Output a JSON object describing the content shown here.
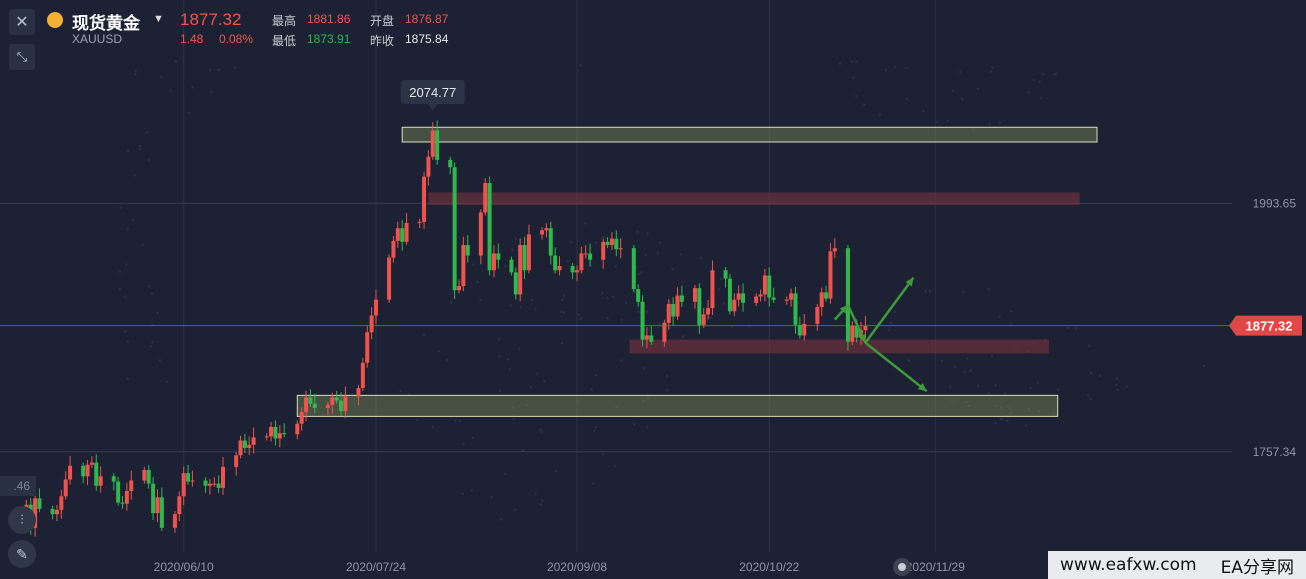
{
  "symbol": {
    "name": "现货黄金",
    "code": "XAUUSD",
    "price": "1877.32",
    "change": "1.48",
    "change_pct": "0.08%"
  },
  "quote": {
    "high_label": "最高",
    "high": "1881.86",
    "open_label": "开盘",
    "open": "1876.87",
    "low_label": "最低",
    "low": "1873.91",
    "prev_label": "昨收",
    "prev": "1875.84"
  },
  "side_left": {
    "partial_label": ".46"
  },
  "footer": {
    "site": "www.eafxw.com",
    "brand": "EA分享网"
  },
  "colors": {
    "bg": "#1c2233",
    "up": "#f0534d",
    "down": "#2fb84d",
    "zone_green": "#7a8a4a",
    "zone_red": "#8a3d44"
  },
  "chart_data": {
    "type": "candlestick",
    "price_axis": {
      "ticks": [
        1993.65,
        1757.34
      ],
      "current": 1877.32,
      "ylim": [
        1662,
        2130
      ]
    },
    "x_labels": [
      "2020/06/10",
      "2020/07/24",
      "2020/09/08",
      "2020/10/22",
      "2020/11/29"
    ],
    "peak_label": "2074.77",
    "zones": [
      {
        "kind": "resistance",
        "from": "2020-07-30",
        "to": "2021-01-05",
        "low": 2052,
        "high": 2066
      },
      {
        "kind": "resistance-red",
        "from": "2020-08-05",
        "to": "2021-01-01",
        "low": 1992,
        "high": 2004
      },
      {
        "kind": "support-red",
        "from": "2020-09-20",
        "to": "2020-12-25",
        "low": 1851,
        "high": 1864
      },
      {
        "kind": "support",
        "from": "2020-07-06",
        "to": "2020-12-27",
        "low": 1791,
        "high": 1811
      }
    ],
    "arrows": [
      {
        "from": [
          "2020-11-06",
          1883
        ],
        "to": [
          "2020-11-09",
          1897
        ]
      },
      {
        "from": [
          "2020-11-09",
          1897
        ],
        "to": [
          "2020-11-13",
          1861
        ]
      },
      {
        "from": [
          "2020-11-13",
          1861
        ],
        "to": [
          "2020-11-24",
          1923
        ]
      },
      {
        "from": [
          "2020-11-13",
          1861
        ],
        "to": [
          "2020-11-27",
          1815
        ]
      }
    ],
    "candles": [
      {
        "d": "2020-05-04",
        "c": 1702
      },
      {
        "d": "2020-05-05",
        "c": 1707
      },
      {
        "d": "2020-05-06",
        "c": 1685
      },
      {
        "d": "2020-05-07",
        "c": 1713
      },
      {
        "d": "2020-05-08",
        "c": 1703
      },
      {
        "d": "2020-05-11",
        "c": 1698
      },
      {
        "d": "2020-05-12",
        "c": 1702
      },
      {
        "d": "2020-05-13",
        "c": 1715
      },
      {
        "d": "2020-05-14",
        "c": 1731
      },
      {
        "d": "2020-05-15",
        "c": 1744
      },
      {
        "d": "2020-05-18",
        "c": 1734
      },
      {
        "d": "2020-05-19",
        "c": 1745
      },
      {
        "d": "2020-05-20",
        "c": 1747
      },
      {
        "d": "2020-05-21",
        "c": 1725
      },
      {
        "d": "2020-05-22",
        "c": 1734
      },
      {
        "d": "2020-05-25",
        "c": 1729
      },
      {
        "d": "2020-05-26",
        "c": 1709
      },
      {
        "d": "2020-05-27",
        "c": 1708
      },
      {
        "d": "2020-05-28",
        "c": 1720
      },
      {
        "d": "2020-05-29",
        "c": 1730
      },
      {
        "d": "2020-06-01",
        "c": 1740
      },
      {
        "d": "2020-06-02",
        "c": 1727
      },
      {
        "d": "2020-06-03",
        "c": 1699
      },
      {
        "d": "2020-06-04",
        "c": 1714
      },
      {
        "d": "2020-06-05",
        "c": 1685
      },
      {
        "d": "2020-06-08",
        "c": 1698
      },
      {
        "d": "2020-06-09",
        "c": 1715
      },
      {
        "d": "2020-06-10",
        "c": 1737
      },
      {
        "d": "2020-06-11",
        "c": 1729
      },
      {
        "d": "2020-06-12",
        "c": 1730
      },
      {
        "d": "2020-06-15",
        "c": 1725
      },
      {
        "d": "2020-06-16",
        "c": 1727
      },
      {
        "d": "2020-06-17",
        "c": 1727
      },
      {
        "d": "2020-06-18",
        "c": 1723
      },
      {
        "d": "2020-06-19",
        "c": 1743
      },
      {
        "d": "2020-06-22",
        "c": 1754
      },
      {
        "d": "2020-06-23",
        "c": 1768
      },
      {
        "d": "2020-06-24",
        "c": 1761
      },
      {
        "d": "2020-06-25",
        "c": 1764
      },
      {
        "d": "2020-06-26",
        "c": 1771
      },
      {
        "d": "2020-06-29",
        "c": 1772
      },
      {
        "d": "2020-06-30",
        "c": 1781
      },
      {
        "d": "2020-07-01",
        "c": 1770
      },
      {
        "d": "2020-07-02",
        "c": 1775
      },
      {
        "d": "2020-07-03",
        "c": 1774
      },
      {
        "d": "2020-07-06",
        "c": 1784
      },
      {
        "d": "2020-07-07",
        "c": 1795
      },
      {
        "d": "2020-07-08",
        "c": 1809
      },
      {
        "d": "2020-07-09",
        "c": 1803
      },
      {
        "d": "2020-07-10",
        "c": 1799
      },
      {
        "d": "2020-07-13",
        "c": 1802
      },
      {
        "d": "2020-07-14",
        "c": 1809
      },
      {
        "d": "2020-07-15",
        "c": 1806
      },
      {
        "d": "2020-07-16",
        "c": 1796
      },
      {
        "d": "2020-07-17",
        "c": 1810
      },
      {
        "d": "2020-07-20",
        "c": 1818
      },
      {
        "d": "2020-07-21",
        "c": 1842
      },
      {
        "d": "2020-07-22",
        "c": 1871
      },
      {
        "d": "2020-07-23",
        "c": 1887
      },
      {
        "d": "2020-07-24",
        "c": 1902
      },
      {
        "d": "2020-07-27",
        "c": 1942
      },
      {
        "d": "2020-07-28",
        "c": 1958
      },
      {
        "d": "2020-07-29",
        "c": 1970
      },
      {
        "d": "2020-07-30",
        "c": 1957
      },
      {
        "d": "2020-07-31",
        "c": 1975
      },
      {
        "d": "2020-08-03",
        "c": 1976
      },
      {
        "d": "2020-08-04",
        "c": 2019
      },
      {
        "d": "2020-08-05",
        "c": 2038
      },
      {
        "d": "2020-08-06",
        "c": 2063
      },
      {
        "d": "2020-08-07",
        "c": 2035
      },
      {
        "d": "2020-08-10",
        "c": 2028
      },
      {
        "d": "2020-08-11",
        "c": 1911
      },
      {
        "d": "2020-08-12",
        "c": 1915
      },
      {
        "d": "2020-08-13",
        "c": 1954
      },
      {
        "d": "2020-08-14",
        "c": 1944
      },
      {
        "d": "2020-08-17",
        "c": 1985
      },
      {
        "d": "2020-08-18",
        "c": 2013
      },
      {
        "d": "2020-08-19",
        "c": 1930
      },
      {
        "d": "2020-08-20",
        "c": 1946
      },
      {
        "d": "2020-08-21",
        "c": 1940
      },
      {
        "d": "2020-08-24",
        "c": 1928
      },
      {
        "d": "2020-08-25",
        "c": 1907
      },
      {
        "d": "2020-08-26",
        "c": 1954
      },
      {
        "d": "2020-08-27",
        "c": 1930
      },
      {
        "d": "2020-08-28",
        "c": 1964
      },
      {
        "d": "2020-08-31",
        "c": 1968
      },
      {
        "d": "2020-09-01",
        "c": 1970
      },
      {
        "d": "2020-09-02",
        "c": 1944
      },
      {
        "d": "2020-09-03",
        "c": 1930
      },
      {
        "d": "2020-09-04",
        "c": 1934
      },
      {
        "d": "2020-09-07",
        "c": 1928
      },
      {
        "d": "2020-09-08",
        "c": 1930
      },
      {
        "d": "2020-09-09",
        "c": 1946
      },
      {
        "d": "2020-09-10",
        "c": 1946
      },
      {
        "d": "2020-09-11",
        "c": 1940
      },
      {
        "d": "2020-09-14",
        "c": 1957
      },
      {
        "d": "2020-09-15",
        "c": 1954
      },
      {
        "d": "2020-09-16",
        "c": 1960
      },
      {
        "d": "2020-09-17",
        "c": 1950
      },
      {
        "d": "2020-09-18",
        "c": 1951
      },
      {
        "d": "2020-09-21",
        "c": 1912
      },
      {
        "d": "2020-09-22",
        "c": 1900
      },
      {
        "d": "2020-09-23",
        "c": 1864
      },
      {
        "d": "2020-09-24",
        "c": 1868
      },
      {
        "d": "2020-09-25",
        "c": 1862
      },
      {
        "d": "2020-09-28",
        "c": 1880
      },
      {
        "d": "2020-09-29",
        "c": 1898
      },
      {
        "d": "2020-09-30",
        "c": 1886
      },
      {
        "d": "2020-10-01",
        "c": 1906
      },
      {
        "d": "2020-10-02",
        "c": 1900
      },
      {
        "d": "2020-10-05",
        "c": 1913
      },
      {
        "d": "2020-10-06",
        "c": 1878
      },
      {
        "d": "2020-10-07",
        "c": 1888
      },
      {
        "d": "2020-10-08",
        "c": 1894
      },
      {
        "d": "2020-10-09",
        "c": 1930
      },
      {
        "d": "2020-10-12",
        "c": 1922
      },
      {
        "d": "2020-10-13",
        "c": 1891
      },
      {
        "d": "2020-10-14",
        "c": 1902
      },
      {
        "d": "2020-10-15",
        "c": 1908
      },
      {
        "d": "2020-10-16",
        "c": 1899
      },
      {
        "d": "2020-10-19",
        "c": 1905
      },
      {
        "d": "2020-10-20",
        "c": 1907
      },
      {
        "d": "2020-10-21",
        "c": 1925
      },
      {
        "d": "2020-10-22",
        "c": 1904
      },
      {
        "d": "2020-10-23",
        "c": 1902
      },
      {
        "d": "2020-10-26",
        "c": 1902
      },
      {
        "d": "2020-10-27",
        "c": 1908
      },
      {
        "d": "2020-10-28",
        "c": 1878
      },
      {
        "d": "2020-10-29",
        "c": 1868
      },
      {
        "d": "2020-10-30",
        "c": 1879
      },
      {
        "d": "2020-11-02",
        "c": 1895
      },
      {
        "d": "2020-11-03",
        "c": 1909
      },
      {
        "d": "2020-11-04",
        "c": 1903
      },
      {
        "d": "2020-11-05",
        "c": 1948
      },
      {
        "d": "2020-11-06",
        "c": 1951
      },
      {
        "d": "2020-11-09",
        "c": 1862
      },
      {
        "d": "2020-11-10",
        "c": 1877
      },
      {
        "d": "2020-11-11",
        "c": 1866
      },
      {
        "d": "2020-11-12",
        "c": 1873
      },
      {
        "d": "2020-11-13",
        "c": 1877
      }
    ]
  }
}
